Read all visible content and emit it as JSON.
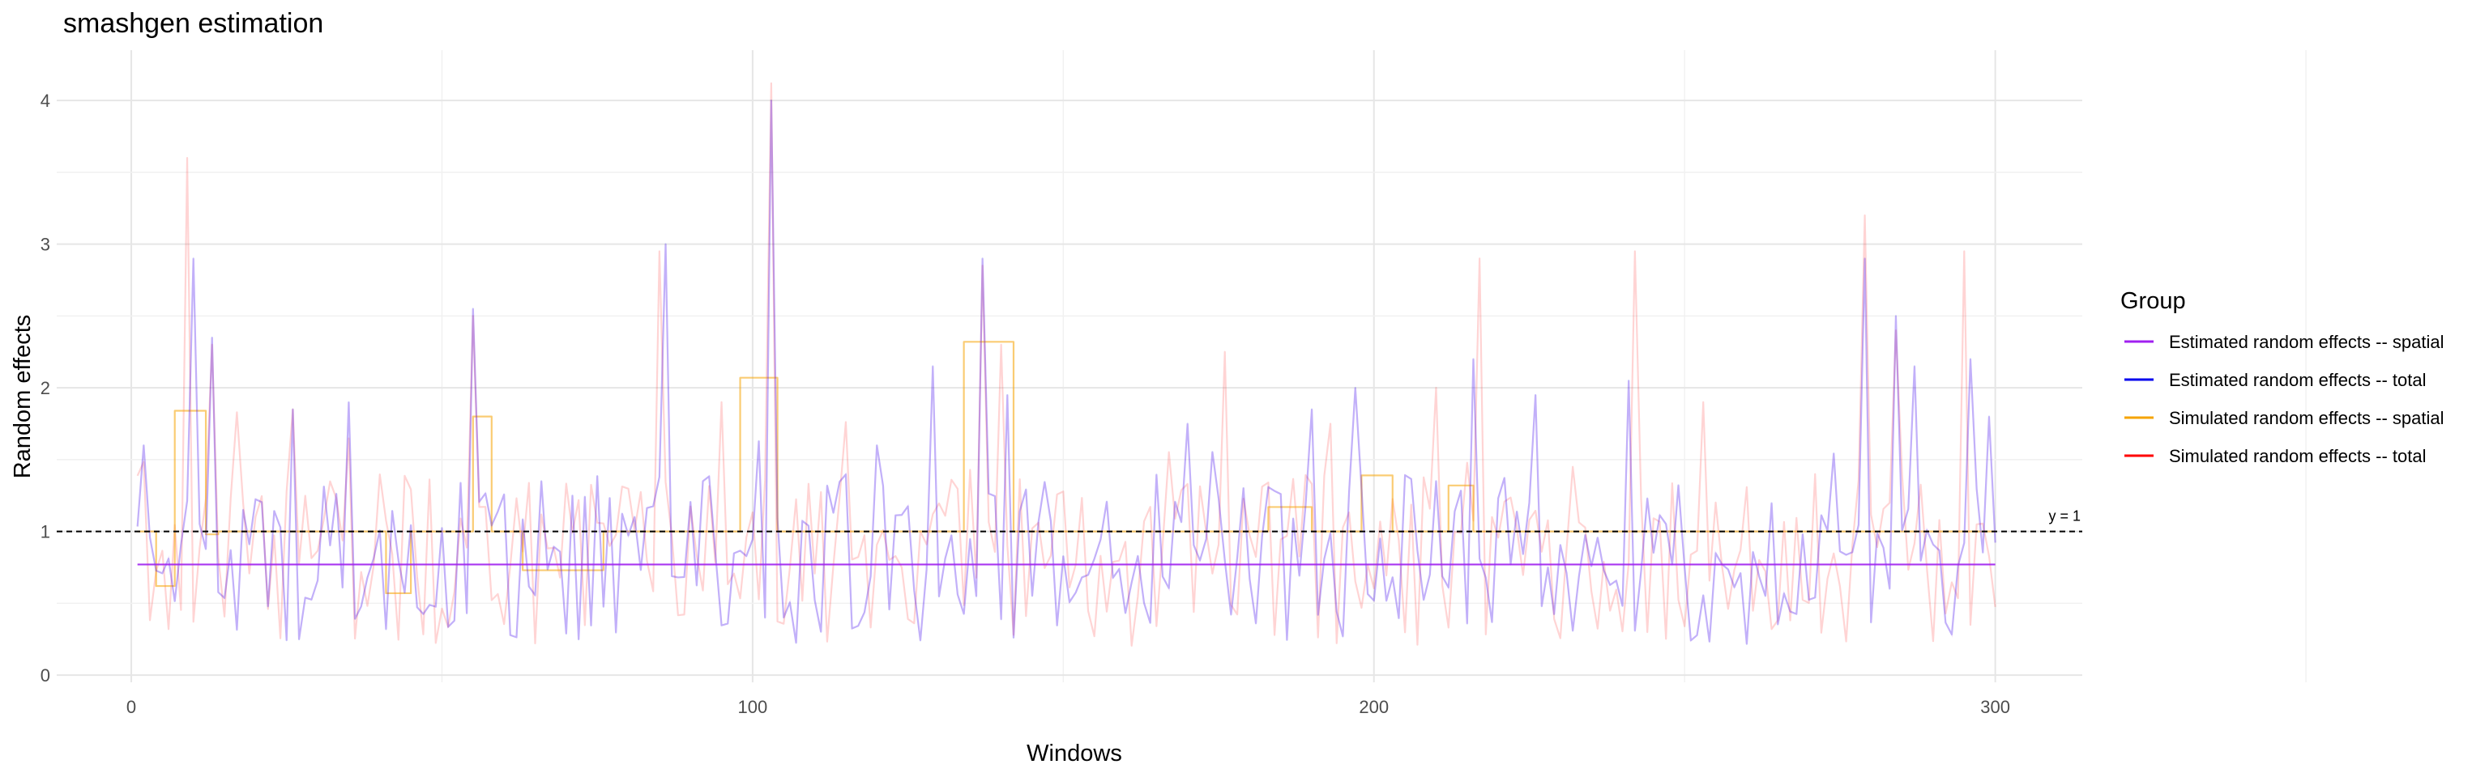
{
  "chart_data": {
    "type": "line",
    "title": "smashgen estimation",
    "xlabel": "Windows",
    "ylabel": "Random effects",
    "xlim": [
      -12,
      314
    ],
    "ylim": [
      -0.05,
      4.35
    ],
    "x_ticks": [
      0,
      100,
      200,
      300
    ],
    "y_ticks": [
      0,
      1,
      2,
      3,
      4
    ],
    "grid": true,
    "legend_position": "right",
    "legend_title": "Group",
    "reference_line": {
      "y": 1,
      "style": "dashed",
      "color": "#000000",
      "label": "y = 1"
    },
    "series": [
      {
        "name": "Estimated random effects -- spatial",
        "color": "#a020f0",
        "style": "flat",
        "x_range": [
          1,
          300
        ],
        "value": 0.77
      },
      {
        "name": "Estimated random effects -- total",
        "color": "#0000ee",
        "style": "noisy",
        "x_range": [
          1,
          300
        ],
        "peaks": [
          [
            2,
            1.6
          ],
          [
            10,
            2.9
          ],
          [
            13,
            2.35
          ],
          [
            26,
            1.85
          ],
          [
            35,
            1.9
          ],
          [
            55,
            2.55
          ],
          [
            86,
            3.0
          ],
          [
            92,
            1.35
          ],
          [
            103,
            4.0
          ],
          [
            120,
            1.6
          ],
          [
            129,
            2.15
          ],
          [
            137,
            2.9
          ],
          [
            141,
            1.95
          ],
          [
            170,
            1.75
          ],
          [
            190,
            1.85
          ],
          [
            197,
            2.0
          ],
          [
            216,
            2.2
          ],
          [
            226,
            1.95
          ],
          [
            241,
            2.05
          ],
          [
            279,
            2.9
          ],
          [
            284,
            2.5
          ],
          [
            287,
            2.15
          ],
          [
            296,
            2.2
          ],
          [
            299,
            1.8
          ]
        ]
      },
      {
        "name": "Simulated random effects -- spatial",
        "color": "#f5a300",
        "style": "step",
        "x_range": [
          1,
          300
        ],
        "segments": [
          [
            1,
            4,
            1.0
          ],
          [
            4,
            7,
            0.62
          ],
          [
            7,
            12,
            1.84
          ],
          [
            12,
            14,
            0.98
          ],
          [
            14,
            41,
            1.0
          ],
          [
            41,
            45,
            0.57
          ],
          [
            45,
            55,
            1.0
          ],
          [
            55,
            58,
            1.8
          ],
          [
            58,
            63,
            1.0
          ],
          [
            63,
            76,
            0.73
          ],
          [
            76,
            98,
            1.0
          ],
          [
            98,
            104,
            2.07
          ],
          [
            104,
            134,
            1.0
          ],
          [
            134,
            142,
            2.32
          ],
          [
            142,
            183,
            1.0
          ],
          [
            183,
            190,
            1.17
          ],
          [
            190,
            198,
            1.0
          ],
          [
            198,
            203,
            1.39
          ],
          [
            203,
            212,
            1.0
          ],
          [
            212,
            216,
            1.32
          ],
          [
            216,
            300,
            1.0
          ]
        ]
      },
      {
        "name": "Simulated random effects -- total",
        "color": "#ff0000",
        "style": "noisy",
        "x_range": [
          1,
          300
        ],
        "peaks": [
          [
            9,
            3.6
          ],
          [
            13,
            2.3
          ],
          [
            26,
            1.85
          ],
          [
            55,
            2.5
          ],
          [
            85,
            2.95
          ],
          [
            95,
            1.9
          ],
          [
            103,
            4.12
          ],
          [
            137,
            2.85
          ],
          [
            140,
            2.3
          ],
          [
            176,
            2.25
          ],
          [
            193,
            1.75
          ],
          [
            210,
            2.0
          ],
          [
            217,
            2.9
          ],
          [
            232,
            1.45
          ],
          [
            242,
            2.95
          ],
          [
            253,
            1.9
          ],
          [
            279,
            3.2
          ],
          [
            284,
            2.4
          ],
          [
            295,
            2.95
          ]
        ]
      }
    ]
  }
}
